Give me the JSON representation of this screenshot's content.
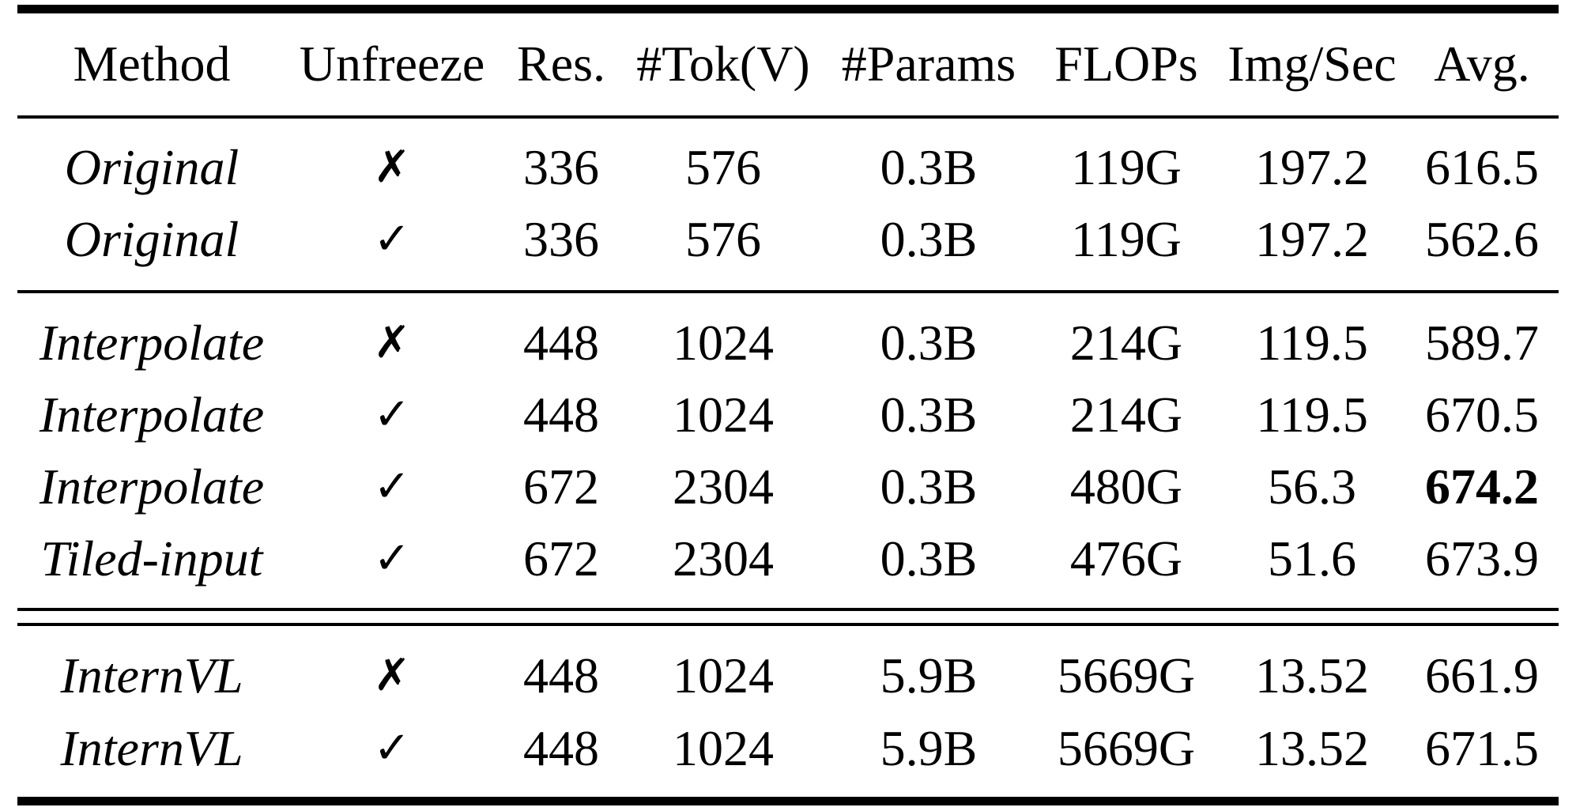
{
  "table": {
    "header": {
      "method": "Method",
      "unfreeze": "Unfreeze",
      "res": "Res.",
      "tok": "#Tok(V)",
      "params": "#Params",
      "flops": "FLOPs",
      "img_sec": "Img/Sec",
      "avg": "Avg."
    },
    "rows": [
      {
        "method": "Original",
        "unfreeze": "✗",
        "res": "336",
        "tok": "576",
        "params": "0.3B",
        "flops": "119G",
        "img_sec": "197.2",
        "avg": "616.5"
      },
      {
        "method": "Original",
        "unfreeze": "✓",
        "res": "336",
        "tok": "576",
        "params": "0.3B",
        "flops": "119G",
        "img_sec": "197.2",
        "avg": "562.6"
      },
      {
        "method": "Interpolate",
        "unfreeze": "✗",
        "res": "448",
        "tok": "1024",
        "params": "0.3B",
        "flops": "214G",
        "img_sec": "119.5",
        "avg": "589.7"
      },
      {
        "method": "Interpolate",
        "unfreeze": "✓",
        "res": "448",
        "tok": "1024",
        "params": "0.3B",
        "flops": "214G",
        "img_sec": "119.5",
        "avg": "670.5"
      },
      {
        "method": "Interpolate",
        "unfreeze": "✓",
        "res": "672",
        "tok": "2304",
        "params": "0.3B",
        "flops": "480G",
        "img_sec": "56.3",
        "avg": "674.2",
        "avg_bold": true
      },
      {
        "method": "Tiled-input",
        "unfreeze": "✓",
        "res": "672",
        "tok": "2304",
        "params": "0.3B",
        "flops": "476G",
        "img_sec": "51.6",
        "avg": "673.9"
      },
      {
        "method": "InternVL",
        "unfreeze": "✗",
        "res": "448",
        "tok": "1024",
        "params": "5.9B",
        "flops": "5669G",
        "img_sec": "13.52",
        "avg": "661.9"
      },
      {
        "method": "InternVL",
        "unfreeze": "✓",
        "res": "448",
        "tok": "1024",
        "params": "5.9B",
        "flops": "5669G",
        "img_sec": "13.52",
        "avg": "671.5"
      }
    ]
  }
}
